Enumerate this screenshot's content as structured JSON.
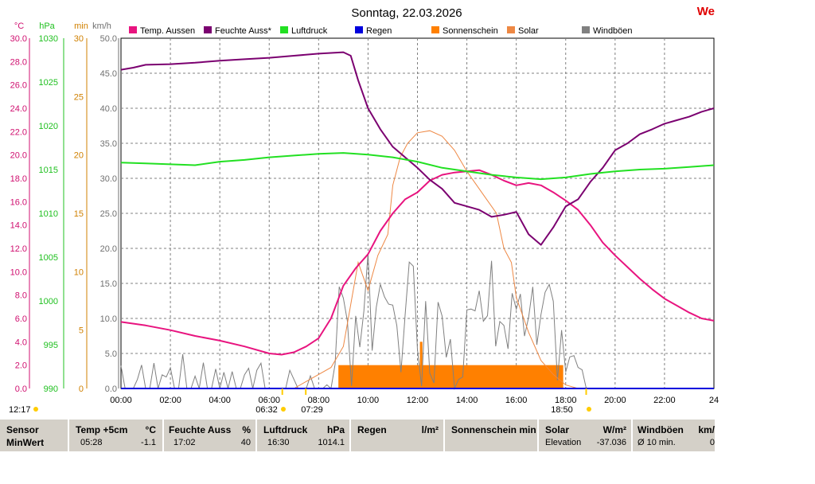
{
  "title": "Sonntag, 22.03.2026",
  "corner_text": "We",
  "axis_units": [
    "°C",
    "hPa",
    "min",
    "km/h"
  ],
  "colors": {
    "temp": "#e8147f",
    "humidity": "#7b0070",
    "pressure": "#22e022",
    "rain": "#0000dd",
    "sunshine": "#ff8000",
    "solar": "#ee8844",
    "gust": "#808080",
    "temp_axis": "#d01070",
    "hpa_axis": "#20c020",
    "min_axis": "#d08000",
    "kmh_axis": "#707070"
  },
  "chart_data": {
    "type": "line",
    "x_ticks": [
      "00:00",
      "02:00",
      "04:00",
      "06:00",
      "08:00",
      "10:00",
      "12:00",
      "14:00",
      "16:00",
      "18:00",
      "20:00",
      "22:00",
      "24"
    ],
    "y_axes": {
      "temp_c": {
        "range": [
          0,
          30
        ],
        "ticks": [
          "0.0",
          "2.0",
          "4.0",
          "6.0",
          "8.0",
          "10.0",
          "12.0",
          "14.0",
          "16.0",
          "18.0",
          "20.0",
          "22.0",
          "24.0",
          "26.0",
          "28.0",
          "30.0"
        ]
      },
      "pressure_hpa": {
        "range": [
          990,
          1030
        ],
        "ticks": [
          "990",
          "995",
          "1000",
          "1005",
          "1010",
          "1015",
          "1020",
          "1025",
          "1030"
        ]
      },
      "sunshine_min": {
        "range": [
          0,
          30
        ],
        "ticks": [
          "0",
          "5",
          "10",
          "15",
          "20",
          "25",
          "30"
        ]
      },
      "wind_kmh": {
        "range": [
          0,
          50
        ],
        "ticks": [
          "0.0",
          "5.0",
          "10.0",
          "15.0",
          "20.0",
          "25.0",
          "30.0",
          "35.0",
          "40.0",
          "45.0",
          "50.0"
        ]
      }
    },
    "legend": [
      {
        "name": "Temp. Aussen",
        "key": "temp"
      },
      {
        "name": "Feuchte Auss*",
        "key": "humidity"
      },
      {
        "name": "Luftdruck",
        "key": "pressure"
      },
      {
        "name": "Regen",
        "key": "rain"
      },
      {
        "name": "Sonnenschein",
        "key": "sunshine"
      },
      {
        "name": "Solar",
        "key": "solar"
      },
      {
        "name": "Windböen",
        "key": "gust"
      }
    ],
    "series": [
      {
        "name": "Temp. Aussen",
        "axis": "temp_c",
        "hours": [
          0,
          1,
          2,
          3,
          4,
          5,
          6,
          6.5,
          7,
          7.5,
          8,
          8.5,
          9,
          9.5,
          10,
          10.5,
          11,
          11.5,
          12,
          12.5,
          13,
          13.5,
          14,
          14.5,
          15,
          15.5,
          16,
          16.5,
          17,
          17.5,
          18,
          18.5,
          19,
          19.5,
          20,
          20.5,
          21,
          21.5,
          22,
          22.5,
          23,
          23.5,
          24
        ],
        "values": [
          5.7,
          5.4,
          5.0,
          4.5,
          4.1,
          3.6,
          3.0,
          2.9,
          3.1,
          3.6,
          4.3,
          6.0,
          8.8,
          10.3,
          11.5,
          13.5,
          15.0,
          16.2,
          16.8,
          17.8,
          18.3,
          18.5,
          18.6,
          18.7,
          18.3,
          17.8,
          17.4,
          17.6,
          17.4,
          16.8,
          16.1,
          15.3,
          14.0,
          12.5,
          11.4,
          10.4,
          9.4,
          8.5,
          7.7,
          7.1,
          6.5,
          6.0,
          5.8
        ]
      },
      {
        "name": "Feuchte Auss*",
        "axis": "wind_kmh",
        "hours": [
          0,
          0.5,
          1,
          2,
          3,
          4,
          5,
          6,
          7,
          8,
          9,
          9.3,
          9.6,
          10,
          10.5,
          11,
          11.5,
          12,
          12.5,
          13,
          13.5,
          14,
          14.5,
          15,
          15.5,
          16,
          16.5,
          17,
          17.5,
          18,
          18.5,
          19,
          19.5,
          20,
          20.5,
          21,
          21.5,
          22,
          22.5,
          23,
          23.5,
          24
        ],
        "values": [
          45.5,
          45.8,
          46.2,
          46.3,
          46.5,
          46.8,
          47.0,
          47.2,
          47.5,
          47.8,
          48.0,
          47.5,
          44.0,
          40.0,
          37.0,
          34.5,
          33.0,
          31.5,
          29.8,
          28.5,
          26.5,
          26.0,
          25.5,
          24.5,
          24.8,
          25.2,
          22.0,
          20.5,
          23.0,
          26.0,
          27.0,
          29.5,
          31.5,
          34.0,
          35.0,
          36.3,
          37.0,
          37.8,
          38.3,
          38.8,
          39.5,
          40.0
        ]
      },
      {
        "name": "Luftdruck",
        "axis": "pressure_hpa",
        "hours": [
          0,
          1,
          2,
          3,
          4,
          5,
          6,
          7,
          8,
          9,
          10,
          11,
          12,
          13,
          14,
          15,
          16,
          17,
          18,
          19,
          20,
          21,
          22,
          23,
          24
        ],
        "values": [
          1015.8,
          1015.7,
          1015.6,
          1015.5,
          1015.9,
          1016.1,
          1016.4,
          1016.6,
          1016.8,
          1016.9,
          1016.7,
          1016.4,
          1015.9,
          1015.2,
          1014.8,
          1014.4,
          1014.1,
          1013.9,
          1014.1,
          1014.5,
          1014.8,
          1015.0,
          1015.1,
          1015.3,
          1015.5
        ]
      }
    ],
    "solar": {
      "axis": "wind_kmh",
      "hours": [
        7,
        7.5,
        8,
        8.5,
        9,
        9.3,
        9.6,
        10,
        10.4,
        10.8,
        11,
        11.3,
        11.6,
        12,
        12.5,
        13,
        13.5,
        14,
        14.4,
        14.8,
        15.2,
        15.5,
        15.8,
        16,
        16.5,
        17,
        17.5,
        18,
        18.5
      ],
      "values": [
        0,
        1,
        2,
        3,
        6,
        12,
        18,
        14,
        19,
        22,
        29,
        33,
        35,
        36.5,
        36.8,
        36,
        34,
        31,
        29,
        27,
        25,
        20,
        18,
        13,
        8,
        4,
        2,
        0.5,
        0
      ]
    },
    "sunshine": {
      "axis": "sunshine_min",
      "hours": [
        8.8,
        12.1,
        12.2,
        12.3,
        17.9
      ],
      "values": [
        2,
        4,
        2,
        2,
        0
      ]
    },
    "gusts": {
      "axis": "wind_kmh",
      "note": "noisy gust bars between 0 and 22 km/h"
    },
    "x_markers": [
      "06:32",
      "07:29",
      "18:50",
      "12:17"
    ]
  },
  "footer": {
    "sensor": {
      "h1": "Sensor",
      "h2": "MinWert"
    },
    "temp": {
      "h": "Temp +5cm",
      "unit": "°C",
      "time": "05:28",
      "value": "-1.1"
    },
    "humidity": {
      "h": "Feuchte Auss",
      "unit": "%",
      "time": "17:02",
      "value": "40"
    },
    "pressure": {
      "h": "Luftdruck",
      "unit": "hPa",
      "time": "16:30",
      "value": "1014.1"
    },
    "rain": {
      "h": "Regen",
      "unit": "l/m²"
    },
    "sun": {
      "h": "Sonnenschein min"
    },
    "solar": {
      "h": "Solar",
      "unit": "W/m²",
      "label": "Elevation",
      "value": "-37.036"
    },
    "wind": {
      "h": "Windböen",
      "unit": "km/",
      "label": "Ø 10 min.",
      "value": "0"
    }
  }
}
